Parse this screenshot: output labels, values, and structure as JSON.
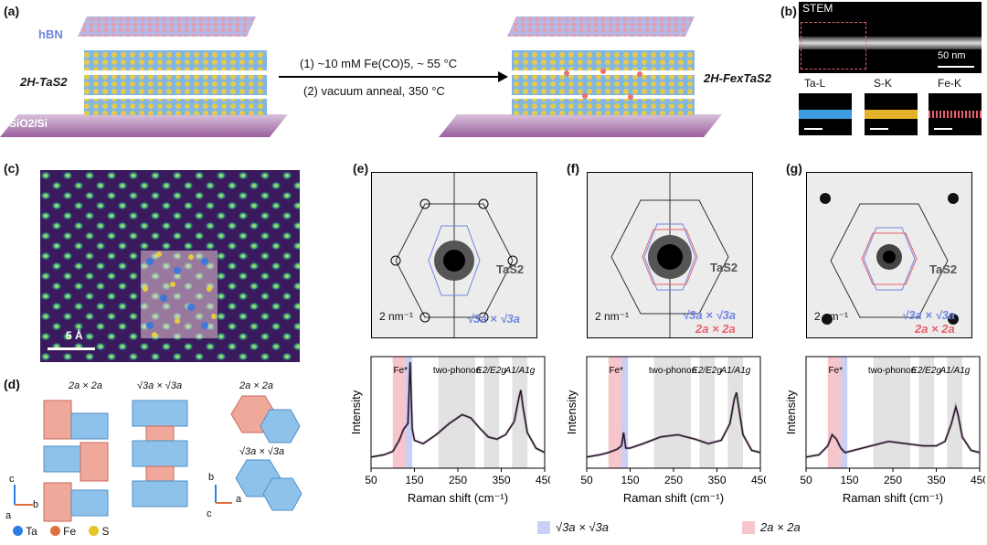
{
  "panels": {
    "a": "(a)",
    "b": "(b)",
    "c": "(c)",
    "d": "(d)",
    "e": "(e)",
    "f": "(f)",
    "g": "(g)"
  },
  "panel_a": {
    "hbn": "hBN",
    "tas2": "2H-TaS2",
    "fetas2": "2H-FexTaS2",
    "substrate": "SiO2/Si",
    "step1": "(1) ~10 mM Fe(CO)5, ~ 55 °C",
    "step2": "(2) vacuum anneal, 350 °C"
  },
  "panel_b": {
    "stem": "STEM",
    "scale": "50 nm",
    "maps": [
      "Ta-L",
      "S-K",
      "Fe-K"
    ]
  },
  "panel_c": {
    "scale": "5 Å"
  },
  "panel_d": {
    "label_2a": "2a × 2a",
    "label_r3": "√3a × √3a",
    "legend": [
      "Ta",
      "Fe",
      "S"
    ],
    "axes_left": [
      "c",
      "b",
      "a"
    ],
    "axes_right": [
      "b",
      "a",
      "c"
    ]
  },
  "diffraction": {
    "tas2": "TaS2",
    "scale": "2 nm⁻¹",
    "r3": "√3a × √3a",
    "twoa": "2a × 2a"
  },
  "raman": {
    "ylabel": "Intensity",
    "xlabel": "Raman shift (cm⁻¹)",
    "ticks": [
      "50",
      "150",
      "250",
      "350",
      "450"
    ],
    "bands": [
      "Fe*",
      "two-phonon",
      "E2/E2g",
      "A1/A1g"
    ]
  },
  "bottom_legend": {
    "r3": "√3a × √3a",
    "twoa": "2a × 2a"
  },
  "colors": {
    "blue": "#6f86e0",
    "red": "#e8606e",
    "purple": "#9b5f9e",
    "band": "#e2e2e2"
  },
  "chart_data": [
    {
      "type": "line",
      "panel": "e",
      "xlabel": "Raman shift (cm⁻¹)",
      "ylabel": "Intensity",
      "xlim": [
        50,
        450
      ],
      "x": [
        50,
        80,
        100,
        115,
        125,
        135,
        140,
        145,
        150,
        170,
        200,
        230,
        260,
        280,
        300,
        320,
        340,
        360,
        380,
        390,
        395,
        400,
        410,
        430,
        450
      ],
      "y": [
        0.1,
        0.12,
        0.15,
        0.25,
        0.35,
        0.4,
        0.95,
        0.35,
        0.25,
        0.22,
        0.3,
        0.4,
        0.48,
        0.45,
        0.36,
        0.28,
        0.26,
        0.3,
        0.42,
        0.62,
        0.7,
        0.55,
        0.32,
        0.18,
        0.14
      ]
    },
    {
      "type": "line",
      "panel": "f",
      "xlabel": "Raman shift (cm⁻¹)",
      "ylabel": "Intensity",
      "xlim": [
        50,
        450
      ],
      "x": [
        50,
        80,
        100,
        120,
        130,
        135,
        140,
        150,
        180,
        220,
        260,
        300,
        330,
        360,
        380,
        390,
        395,
        400,
        410,
        430,
        450
      ],
      "y": [
        0.1,
        0.12,
        0.14,
        0.17,
        0.2,
        0.32,
        0.18,
        0.18,
        0.22,
        0.28,
        0.3,
        0.26,
        0.22,
        0.25,
        0.4,
        0.62,
        0.68,
        0.55,
        0.3,
        0.16,
        0.14
      ]
    },
    {
      "type": "line",
      "panel": "g",
      "xlabel": "Raman shift (cm⁻¹)",
      "ylabel": "Intensity",
      "xlim": [
        50,
        450
      ],
      "x": [
        50,
        80,
        100,
        110,
        120,
        130,
        140,
        160,
        200,
        240,
        280,
        320,
        350,
        370,
        385,
        395,
        400,
        410,
        430,
        450
      ],
      "y": [
        0.1,
        0.12,
        0.2,
        0.3,
        0.26,
        0.18,
        0.14,
        0.16,
        0.2,
        0.24,
        0.22,
        0.2,
        0.2,
        0.24,
        0.4,
        0.55,
        0.48,
        0.28,
        0.16,
        0.14
      ]
    }
  ]
}
